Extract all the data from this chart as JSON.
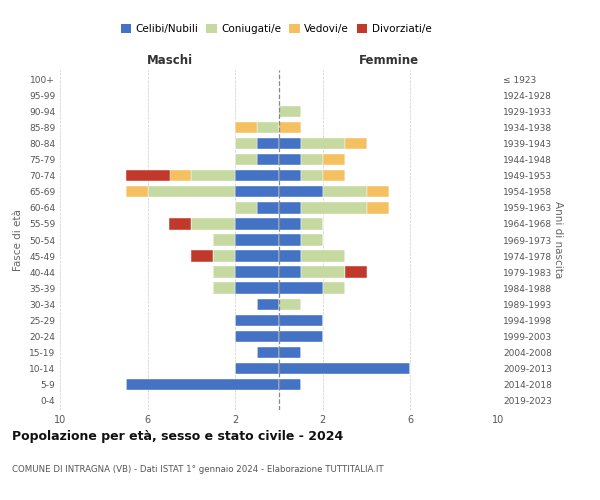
{
  "age_groups": [
    "0-4",
    "5-9",
    "10-14",
    "15-19",
    "20-24",
    "25-29",
    "30-34",
    "35-39",
    "40-44",
    "45-49",
    "50-54",
    "55-59",
    "60-64",
    "65-69",
    "70-74",
    "75-79",
    "80-84",
    "85-89",
    "90-94",
    "95-99",
    "100+"
  ],
  "birth_years": [
    "2019-2023",
    "2014-2018",
    "2009-2013",
    "2004-2008",
    "1999-2003",
    "1994-1998",
    "1989-1993",
    "1984-1988",
    "1979-1983",
    "1974-1978",
    "1969-1973",
    "1964-1968",
    "1959-1963",
    "1954-1958",
    "1949-1953",
    "1944-1948",
    "1939-1943",
    "1934-1938",
    "1929-1933",
    "1924-1928",
    "≤ 1923"
  ],
  "male": {
    "celibi": [
      0,
      7,
      2,
      1,
      2,
      2,
      1,
      2,
      2,
      2,
      2,
      2,
      1,
      2,
      2,
      1,
      1,
      0,
      0,
      0,
      0
    ],
    "coniugati": [
      0,
      0,
      0,
      0,
      0,
      0,
      0,
      1,
      1,
      1,
      1,
      2,
      1,
      4,
      2,
      1,
      1,
      1,
      0,
      0,
      0
    ],
    "vedovi": [
      0,
      0,
      0,
      0,
      0,
      0,
      0,
      0,
      0,
      0,
      0,
      0,
      0,
      1,
      1,
      0,
      0,
      1,
      0,
      0,
      0
    ],
    "divorziati": [
      0,
      0,
      0,
      0,
      0,
      0,
      0,
      0,
      0,
      1,
      0,
      1,
      0,
      0,
      2,
      0,
      0,
      0,
      0,
      0,
      0
    ]
  },
  "female": {
    "nubili": [
      0,
      1,
      6,
      1,
      2,
      2,
      0,
      2,
      1,
      1,
      1,
      1,
      1,
      2,
      1,
      1,
      1,
      0,
      0,
      0,
      0
    ],
    "coniugate": [
      0,
      0,
      0,
      0,
      0,
      0,
      1,
      1,
      2,
      2,
      1,
      1,
      3,
      2,
      1,
      1,
      2,
      0,
      1,
      0,
      0
    ],
    "vedove": [
      0,
      0,
      0,
      0,
      0,
      0,
      0,
      0,
      0,
      0,
      0,
      0,
      1,
      1,
      1,
      1,
      1,
      1,
      0,
      0,
      0
    ],
    "divorziate": [
      0,
      0,
      0,
      0,
      0,
      0,
      0,
      0,
      1,
      0,
      0,
      0,
      0,
      0,
      0,
      0,
      0,
      0,
      0,
      0,
      0
    ]
  },
  "colors": {
    "celibi": "#4472c4",
    "coniugati": "#c5d9a0",
    "vedovi": "#f4c060",
    "divorziati": "#c0392b"
  },
  "title": "Popolazione per età, sesso e stato civile - 2024",
  "subtitle": "COMUNE DI INTRAGNA (VB) - Dati ISTAT 1° gennaio 2024 - Elaborazione TUTTITALIA.IT",
  "ylabel_left": "Fasce di età",
  "ylabel_right": "Anni di nascita",
  "xlabel_left": "Maschi",
  "xlabel_right": "Femmine",
  "xlim": 10,
  "background_color": "#ffffff",
  "grid_color": "#cccccc"
}
